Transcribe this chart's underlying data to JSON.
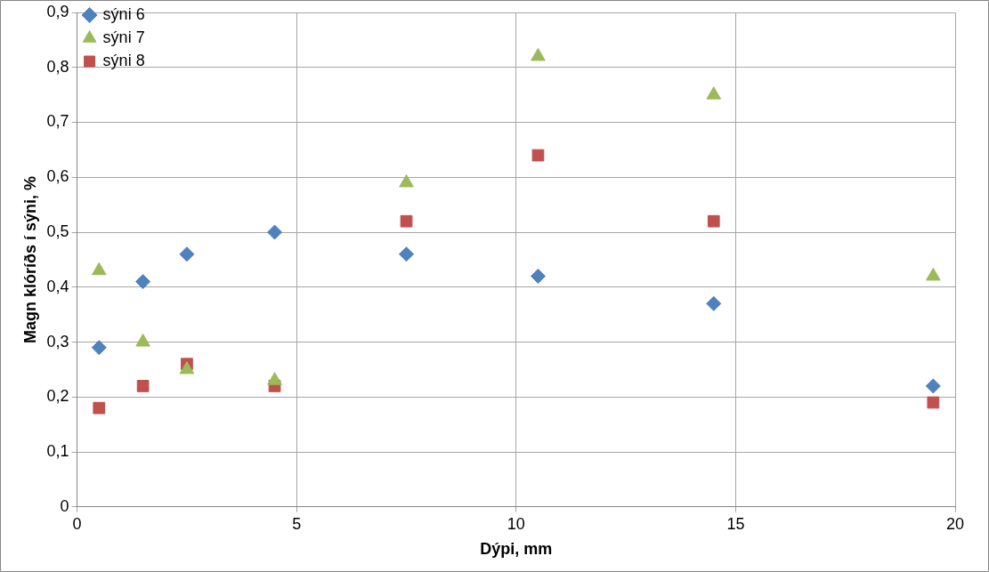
{
  "chart_data": {
    "type": "scatter",
    "xlabel": "Dýpi, mm",
    "ylabel": "Magn klóríðs í sýni, %",
    "x": [
      0.5,
      1.5,
      2.5,
      4.5,
      7.5,
      10.5,
      14.5,
      19.5
    ],
    "series": [
      {
        "name": "sýni 6",
        "color": "#4f81bd",
        "marker": "diamond",
        "values": [
          0.29,
          0.41,
          0.46,
          0.5,
          0.46,
          0.42,
          0.37,
          0.22
        ]
      },
      {
        "name": "sýni 7",
        "color": "#9bbb59",
        "marker": "triangle",
        "values": [
          0.43,
          0.3,
          0.25,
          0.23,
          0.59,
          0.82,
          0.75,
          0.42
        ]
      },
      {
        "name": "sýni 8",
        "color": "#c0504d",
        "marker": "square",
        "values": [
          0.18,
          0.22,
          0.26,
          0.22,
          0.52,
          0.64,
          0.52,
          0.19
        ]
      }
    ],
    "xlim": [
      0,
      20
    ],
    "xticks": [
      0,
      5,
      10,
      15,
      20
    ],
    "ylim": [
      0,
      0.9
    ],
    "yticks": [
      0,
      {
        "value": 0.1,
        "label": "0,1"
      },
      {
        "value": 0.2,
        "label": "0,2"
      },
      {
        "value": 0.3,
        "label": "0,3"
      },
      {
        "value": 0.4,
        "label": "0,4"
      },
      {
        "value": 0.5,
        "label": "0,5"
      },
      {
        "value": 0.6,
        "label": "0,6"
      },
      {
        "value": 0.7,
        "label": "0,7"
      },
      {
        "value": 0.8,
        "label": "0,8"
      },
      {
        "value": 0.9,
        "label": "0,9"
      }
    ],
    "grid": true,
    "legend": "top left"
  }
}
